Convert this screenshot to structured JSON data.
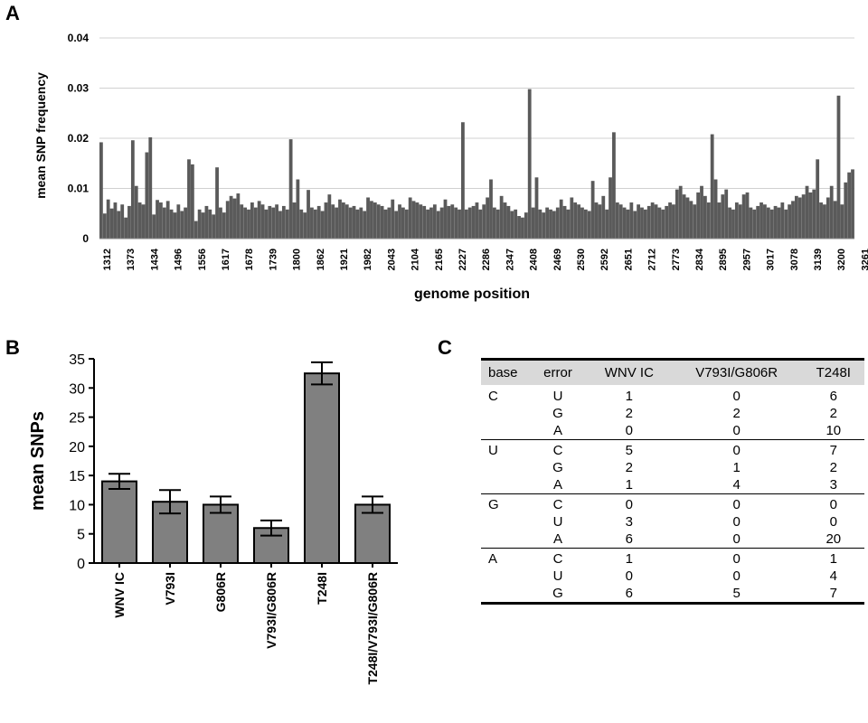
{
  "panel_labels": {
    "a": "A",
    "b": "B",
    "c": "C"
  },
  "chart_data": [
    {
      "type": "bar",
      "ylabel": "mean SNP frequency",
      "xlabel": "genome position",
      "ylim": [
        0,
        0.04
      ],
      "yticks": [
        "0",
        "0.01",
        "0.02",
        "0.03",
        "0.04"
      ],
      "grid": true,
      "color": "#5a5a5a",
      "x_range": [
        1312,
        3261
      ],
      "x_ticks": [
        "1312",
        "1373",
        "1434",
        "1496",
        "1556",
        "1617",
        "1678",
        "1739",
        "1800",
        "1862",
        "1921",
        "1982",
        "2043",
        "2104",
        "2165",
        "2227",
        "2286",
        "2347",
        "2408",
        "2469",
        "2530",
        "2592",
        "2651",
        "2712",
        "2773",
        "2834",
        "2895",
        "2957",
        "3017",
        "3078",
        "3139",
        "3200",
        "3261"
      ],
      "values": [
        0.0192,
        0.005,
        0.0078,
        0.006,
        0.0072,
        0.0055,
        0.0068,
        0.0042,
        0.0065,
        0.0196,
        0.0105,
        0.0072,
        0.0068,
        0.0172,
        0.0202,
        0.0048,
        0.0077,
        0.0072,
        0.0062,
        0.0075,
        0.0058,
        0.0052,
        0.0068,
        0.0055,
        0.0062,
        0.0158,
        0.0148,
        0.0035,
        0.0058,
        0.0052,
        0.0065,
        0.0058,
        0.0048,
        0.0142,
        0.0062,
        0.0052,
        0.0075,
        0.0085,
        0.008,
        0.009,
        0.0068,
        0.0062,
        0.0058,
        0.0072,
        0.0062,
        0.0075,
        0.0068,
        0.0058,
        0.0065,
        0.0062,
        0.0068,
        0.0055,
        0.0065,
        0.0058,
        0.0198,
        0.0072,
        0.0118,
        0.0058,
        0.0052,
        0.0097,
        0.0062,
        0.0058,
        0.0065,
        0.0055,
        0.0072,
        0.0088,
        0.0068,
        0.0062,
        0.0078,
        0.0072,
        0.0068,
        0.0062,
        0.0065,
        0.0058,
        0.0062,
        0.0055,
        0.0082,
        0.0075,
        0.0072,
        0.0068,
        0.0065,
        0.0058,
        0.0062,
        0.0078,
        0.0055,
        0.0068,
        0.0062,
        0.0058,
        0.0082,
        0.0075,
        0.0072,
        0.0068,
        0.0065,
        0.0058,
        0.0062,
        0.0068,
        0.0055,
        0.0062,
        0.0078,
        0.0065,
        0.0068,
        0.0062,
        0.0058,
        0.0232,
        0.0058,
        0.0062,
        0.0065,
        0.0072,
        0.0058,
        0.0068,
        0.0082,
        0.0118,
        0.0062,
        0.0058,
        0.0085,
        0.0072,
        0.0065,
        0.0055,
        0.0058,
        0.0045,
        0.0042,
        0.0052,
        0.0298,
        0.0062,
        0.0122,
        0.0058,
        0.0052,
        0.0062,
        0.0058,
        0.0055,
        0.0062,
        0.0078,
        0.0065,
        0.0058,
        0.0082,
        0.0072,
        0.0068,
        0.0062,
        0.0058,
        0.0055,
        0.0115,
        0.0072,
        0.0068,
        0.0085,
        0.0058,
        0.0122,
        0.0212,
        0.0072,
        0.0068,
        0.0062,
        0.0058,
        0.0072,
        0.0055,
        0.0068,
        0.0062,
        0.0058,
        0.0065,
        0.0072,
        0.0068,
        0.0062,
        0.0058,
        0.0065,
        0.0072,
        0.0068,
        0.0098,
        0.0105,
        0.0088,
        0.0082,
        0.0075,
        0.0068,
        0.0092,
        0.0105,
        0.0085,
        0.0072,
        0.0208,
        0.0118,
        0.0072,
        0.0088,
        0.0098,
        0.0062,
        0.0058,
        0.0072,
        0.0068,
        0.0088,
        0.0092,
        0.0062,
        0.0058,
        0.0065,
        0.0072,
        0.0068,
        0.0062,
        0.0058,
        0.0065,
        0.0062,
        0.0072,
        0.0058,
        0.0068,
        0.0075,
        0.0085,
        0.0082,
        0.0088,
        0.0105,
        0.0092,
        0.0098,
        0.0158,
        0.0072,
        0.0068,
        0.0082,
        0.0105,
        0.0075,
        0.0285,
        0.0068,
        0.0112,
        0.0132,
        0.0138
      ]
    },
    {
      "type": "bar",
      "ylabel": "mean SNPs",
      "ylim": [
        0,
        35
      ],
      "yticks": [
        "0",
        "5",
        "10",
        "15",
        "20",
        "25",
        "30",
        "35"
      ],
      "color": "#808080",
      "categories": [
        "WNV IC",
        "V793I",
        "G806R",
        "V793I/G806R",
        "T248I",
        "T248I/V793I/G806R"
      ],
      "values": [
        14.0,
        10.5,
        10.0,
        6.0,
        32.5,
        10.0
      ],
      "errors": [
        1.3,
        2.0,
        1.4,
        1.3,
        1.9,
        1.4
      ]
    },
    {
      "type": "table",
      "headers": [
        "base",
        "error",
        "WNV IC",
        "V793I/G806R",
        "T248I"
      ],
      "groups": [
        {
          "base": "C",
          "rows": [
            [
              "U",
              "1",
              "0",
              "6"
            ],
            [
              "G",
              "2",
              "2",
              "2"
            ],
            [
              "A",
              "0",
              "0",
              "10"
            ]
          ]
        },
        {
          "base": "U",
          "rows": [
            [
              "C",
              "5",
              "0",
              "7"
            ],
            [
              "G",
              "2",
              "1",
              "2"
            ],
            [
              "A",
              "1",
              "4",
              "3"
            ]
          ]
        },
        {
          "base": "G",
          "rows": [
            [
              "C",
              "0",
              "0",
              "0"
            ],
            [
              "U",
              "3",
              "0",
              "0"
            ],
            [
              "A",
              "6",
              "0",
              "20"
            ]
          ]
        },
        {
          "base": "A",
          "rows": [
            [
              "C",
              "1",
              "0",
              "1"
            ],
            [
              "U",
              "0",
              "0",
              "4"
            ],
            [
              "G",
              "6",
              "5",
              "7"
            ]
          ]
        }
      ]
    }
  ]
}
